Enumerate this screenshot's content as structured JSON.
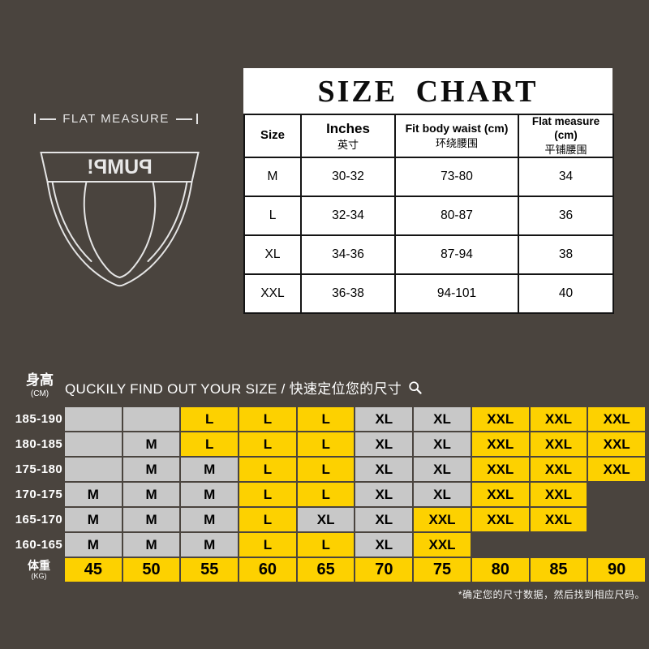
{
  "colors": {
    "background": "#4a443e",
    "yellow": "#fdd100",
    "gray": "#c8c8c8"
  },
  "flat_measure": {
    "label": "FLAT MEASURE"
  },
  "briefs": {
    "brand": "PUMP!"
  },
  "size_chart": {
    "title": "SIZE CHART",
    "columns": [
      {
        "en": "Size",
        "zh": ""
      },
      {
        "en": "Inches",
        "zh": "英寸"
      },
      {
        "en": "Fit body waist (cm)",
        "zh": "环绕腰围"
      },
      {
        "en": "Flat measure (cm)",
        "zh": "平铺腰围"
      }
    ],
    "rows": [
      {
        "size": "M",
        "inches": "30-32",
        "waist": "73-80",
        "flat": "34"
      },
      {
        "size": "L",
        "inches": "32-34",
        "waist": "80-87",
        "flat": "36"
      },
      {
        "size": "XL",
        "inches": "34-36",
        "waist": "87-94",
        "flat": "38"
      },
      {
        "size": "XXL",
        "inches": "36-38",
        "waist": "94-101",
        "flat": "40"
      }
    ]
  },
  "finder": {
    "title": "QUCKILY FIND OUT YOUR SIZE / 快速定位您的尺寸",
    "height_label_zh": "身高",
    "height_label_unit": "(CM)",
    "weight_label_zh": "体重",
    "weight_label_unit": "(KG)",
    "weights": [
      "45",
      "50",
      "55",
      "60",
      "65",
      "70",
      "75",
      "80",
      "85",
      "90"
    ],
    "cell_colors": {
      "M": "gray",
      "L": "yellow",
      "XL": "gray",
      "XXL": "yellow"
    },
    "rows": [
      {
        "height": "185-190",
        "cells": [
          "",
          "",
          "L",
          "L",
          "L",
          "XL",
          "XL",
          "XXL",
          "XXL",
          "XXL"
        ]
      },
      {
        "height": "180-185",
        "cells": [
          "",
          "M",
          "L",
          "L",
          "L",
          "XL",
          "XL",
          "XXL",
          "XXL",
          "XXL"
        ]
      },
      {
        "height": "175-180",
        "cells": [
          "",
          "M",
          "M",
          "L",
          "L",
          "XL",
          "XL",
          "XXL",
          "XXL",
          "XXL"
        ]
      },
      {
        "height": "170-175",
        "cells": [
          "M",
          "M",
          "M",
          "L",
          "L",
          "XL",
          "XL",
          "XXL",
          "XXL",
          null
        ]
      },
      {
        "height": "165-170",
        "cells": [
          "M",
          "M",
          "M",
          "L",
          "XL",
          "XL",
          "XXL",
          "XXL",
          "XXL",
          null
        ]
      },
      {
        "height": "160-165",
        "cells": [
          "M",
          "M",
          "M",
          "L",
          "L",
          "XL",
          "XXL",
          null,
          null,
          null
        ]
      }
    ],
    "footnote": "*确定您的尺寸数据，然后找到相应尺码。"
  },
  "chart_data": [
    {
      "type": "table",
      "title": "SIZE CHART",
      "columns": [
        "Size",
        "Inches 英寸",
        "Fit body waist (cm) 环绕腰围",
        "Flat measure (cm) 平铺腰围"
      ],
      "rows": [
        [
          "M",
          "30-32",
          "73-80",
          "34"
        ],
        [
          "L",
          "32-34",
          "80-87",
          "36"
        ],
        [
          "XL",
          "34-36",
          "87-94",
          "38"
        ],
        [
          "XXL",
          "36-38",
          "94-101",
          "40"
        ]
      ]
    },
    {
      "type": "heatmap",
      "title": "QUCKILY FIND OUT YOUR SIZE / 快速定位您的尺寸",
      "xlabel": "体重 (KG)",
      "ylabel": "身高 (CM)",
      "x": [
        45,
        50,
        55,
        60,
        65,
        70,
        75,
        80,
        85,
        90
      ],
      "y": [
        "185-190",
        "180-185",
        "175-180",
        "170-175",
        "165-170",
        "160-165"
      ],
      "values": [
        [
          "",
          "",
          "L",
          "L",
          "L",
          "XL",
          "XL",
          "XXL",
          "XXL",
          "XXL"
        ],
        [
          "",
          "M",
          "L",
          "L",
          "L",
          "XL",
          "XL",
          "XXL",
          "XXL",
          "XXL"
        ],
        [
          "",
          "M",
          "M",
          "L",
          "L",
          "XL",
          "XL",
          "XXL",
          "XXL",
          "XXL"
        ],
        [
          "M",
          "M",
          "M",
          "L",
          "L",
          "XL",
          "XL",
          "XXL",
          "XXL",
          null
        ],
        [
          "M",
          "M",
          "M",
          "L",
          "XL",
          "XL",
          "XXL",
          "XXL",
          "XXL",
          null
        ],
        [
          "M",
          "M",
          "M",
          "L",
          "L",
          "XL",
          "XXL",
          null,
          null,
          null
        ]
      ],
      "legend": "cell color: yellow = L/XXL, gray = M/XL",
      "annotations": [
        "*确定您的尺寸数据，然后找到相应尺码。"
      ]
    }
  ]
}
